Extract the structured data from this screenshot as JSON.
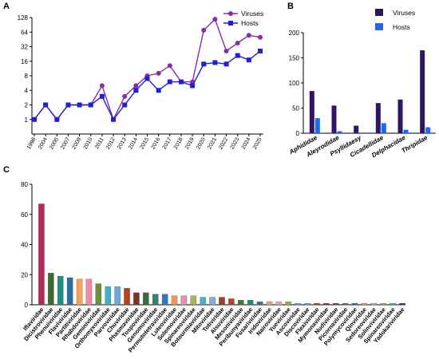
{
  "panels": {
    "a": "A",
    "b": "B",
    "c": "C"
  },
  "chart_data": [
    {
      "type": "line",
      "y_scale": "log2",
      "ylim": [
        0.5,
        128
      ],
      "y_ticks": [
        1,
        2,
        4,
        8,
        16,
        32,
        64,
        128
      ],
      "x": [
        "1998",
        "2004",
        "2006",
        "2007",
        "2009",
        "2010",
        "2011",
        "2012",
        "2013",
        "2014",
        "2015",
        "2016",
        "2017",
        "2018",
        "2019",
        "2020",
        "2021",
        "2022",
        "2023",
        "2024",
        "2025"
      ],
      "series": [
        {
          "name": "Viruses",
          "color": "#8a2ca8",
          "marker": "circle",
          "values": [
            1,
            2,
            1,
            2,
            2,
            2,
            5,
            1,
            3,
            5,
            8,
            9,
            13,
            6,
            6,
            70,
            118,
            26,
            38,
            55,
            50
          ]
        },
        {
          "name": "Hosts",
          "color": "#1f1fd6",
          "marker": "square",
          "values": [
            1,
            2,
            1,
            2,
            2,
            2,
            3,
            1,
            2,
            4,
            7,
            4,
            6,
            6,
            5,
            14,
            15,
            14,
            21,
            17,
            26
          ]
        }
      ],
      "legend": "top-right",
      "grid": false
    },
    {
      "type": "bar",
      "ylim": [
        0,
        200
      ],
      "y_ticks": [
        0,
        50,
        100,
        150,
        200
      ],
      "categories": [
        "Aphididae",
        "Aleyrodidae",
        "Psyllidaesy",
        "Cicadellidae",
        "Delphacidae",
        "Thripidae"
      ],
      "series": [
        {
          "name": "Viruses",
          "color": "#2e1660",
          "values": [
            84,
            55,
            15,
            60,
            67,
            165
          ]
        },
        {
          "name": "Hosts",
          "color": "#1e66f5",
          "values": [
            30,
            4,
            0,
            20,
            7,
            12
          ]
        }
      ],
      "legend": "top-right",
      "grid": false
    },
    {
      "type": "bar",
      "ylim": [
        0,
        80
      ],
      "y_ticks": [
        0,
        20,
        40,
        60,
        80
      ],
      "categories": [
        "Iflaviridae",
        "Dicistroviridae",
        "Phenuiviridae",
        "Flaviviridae",
        "Partitiviridae",
        "Rhabdoviridae",
        "Geminiviridae",
        "Orthomyxoviridae",
        "Parvoviridae",
        "Chuviridae",
        "Phasmaviridae",
        "Tospoviridae",
        "Genomoviridae",
        "Permutotetraviridae",
        "Luteoviridae",
        "Solemoviridae",
        "Spinareoviridae",
        "Botourmiaviridae",
        "Mitoviridae",
        "Totiviridae",
        "Alsuviridae",
        "Mesoniviridae",
        "Peribunyaviridae",
        "Fusariviridae",
        "Iridoviridae",
        "Nairoviridae",
        "Yueviridae",
        "Ascoviridae",
        "Discoviridae",
        "Flexiviridae",
        "Mymonaviridae",
        "Nudiviridae",
        "Picornaviridae",
        "Polymycoviridae",
        "Qinviridae",
        "Sedoreoviridae",
        "Solinviviridae",
        "Spinareoviridae",
        "Yadokariviridae"
      ],
      "values": [
        67,
        21,
        19,
        18,
        17,
        17,
        14,
        12,
        12,
        11,
        8,
        8,
        7,
        7,
        6,
        6,
        6,
        5,
        5,
        5,
        4,
        3,
        3,
        2,
        2,
        2,
        2,
        1,
        1,
        1,
        1,
        1,
        1,
        1,
        1,
        1,
        1,
        1,
        1
      ],
      "colors": [
        "#b22a57",
        "#3d6b2e",
        "#1f8f7e",
        "#2c6ea0",
        "#f0a45e",
        "#ef8aa8",
        "#6f8f3f",
        "#3eb1c5",
        "#6aa8d8",
        "#b6431f",
        "#7b3524",
        "#3a6b39",
        "#2b8774",
        "#2a7abf",
        "#f29a55",
        "#f28bb0",
        "#a8b84f",
        "#3db7c9",
        "#7ab0da",
        "#a33a27",
        "#b8432a",
        "#3d7a2b",
        "#1f8b6b",
        "#2d6fb8",
        "#f4a561",
        "#f2a0b8",
        "#8fb04a",
        "#4ab8c7",
        "#6ea2d6",
        "#b0492a",
        "#8b3b2a",
        "#3f6f35",
        "#2a8a78",
        "#2c74b8",
        "#f2a366",
        "#f0a2bc",
        "#9ab84e",
        "#49b6c9",
        "#2b2f8f"
      ],
      "grid": false
    }
  ]
}
